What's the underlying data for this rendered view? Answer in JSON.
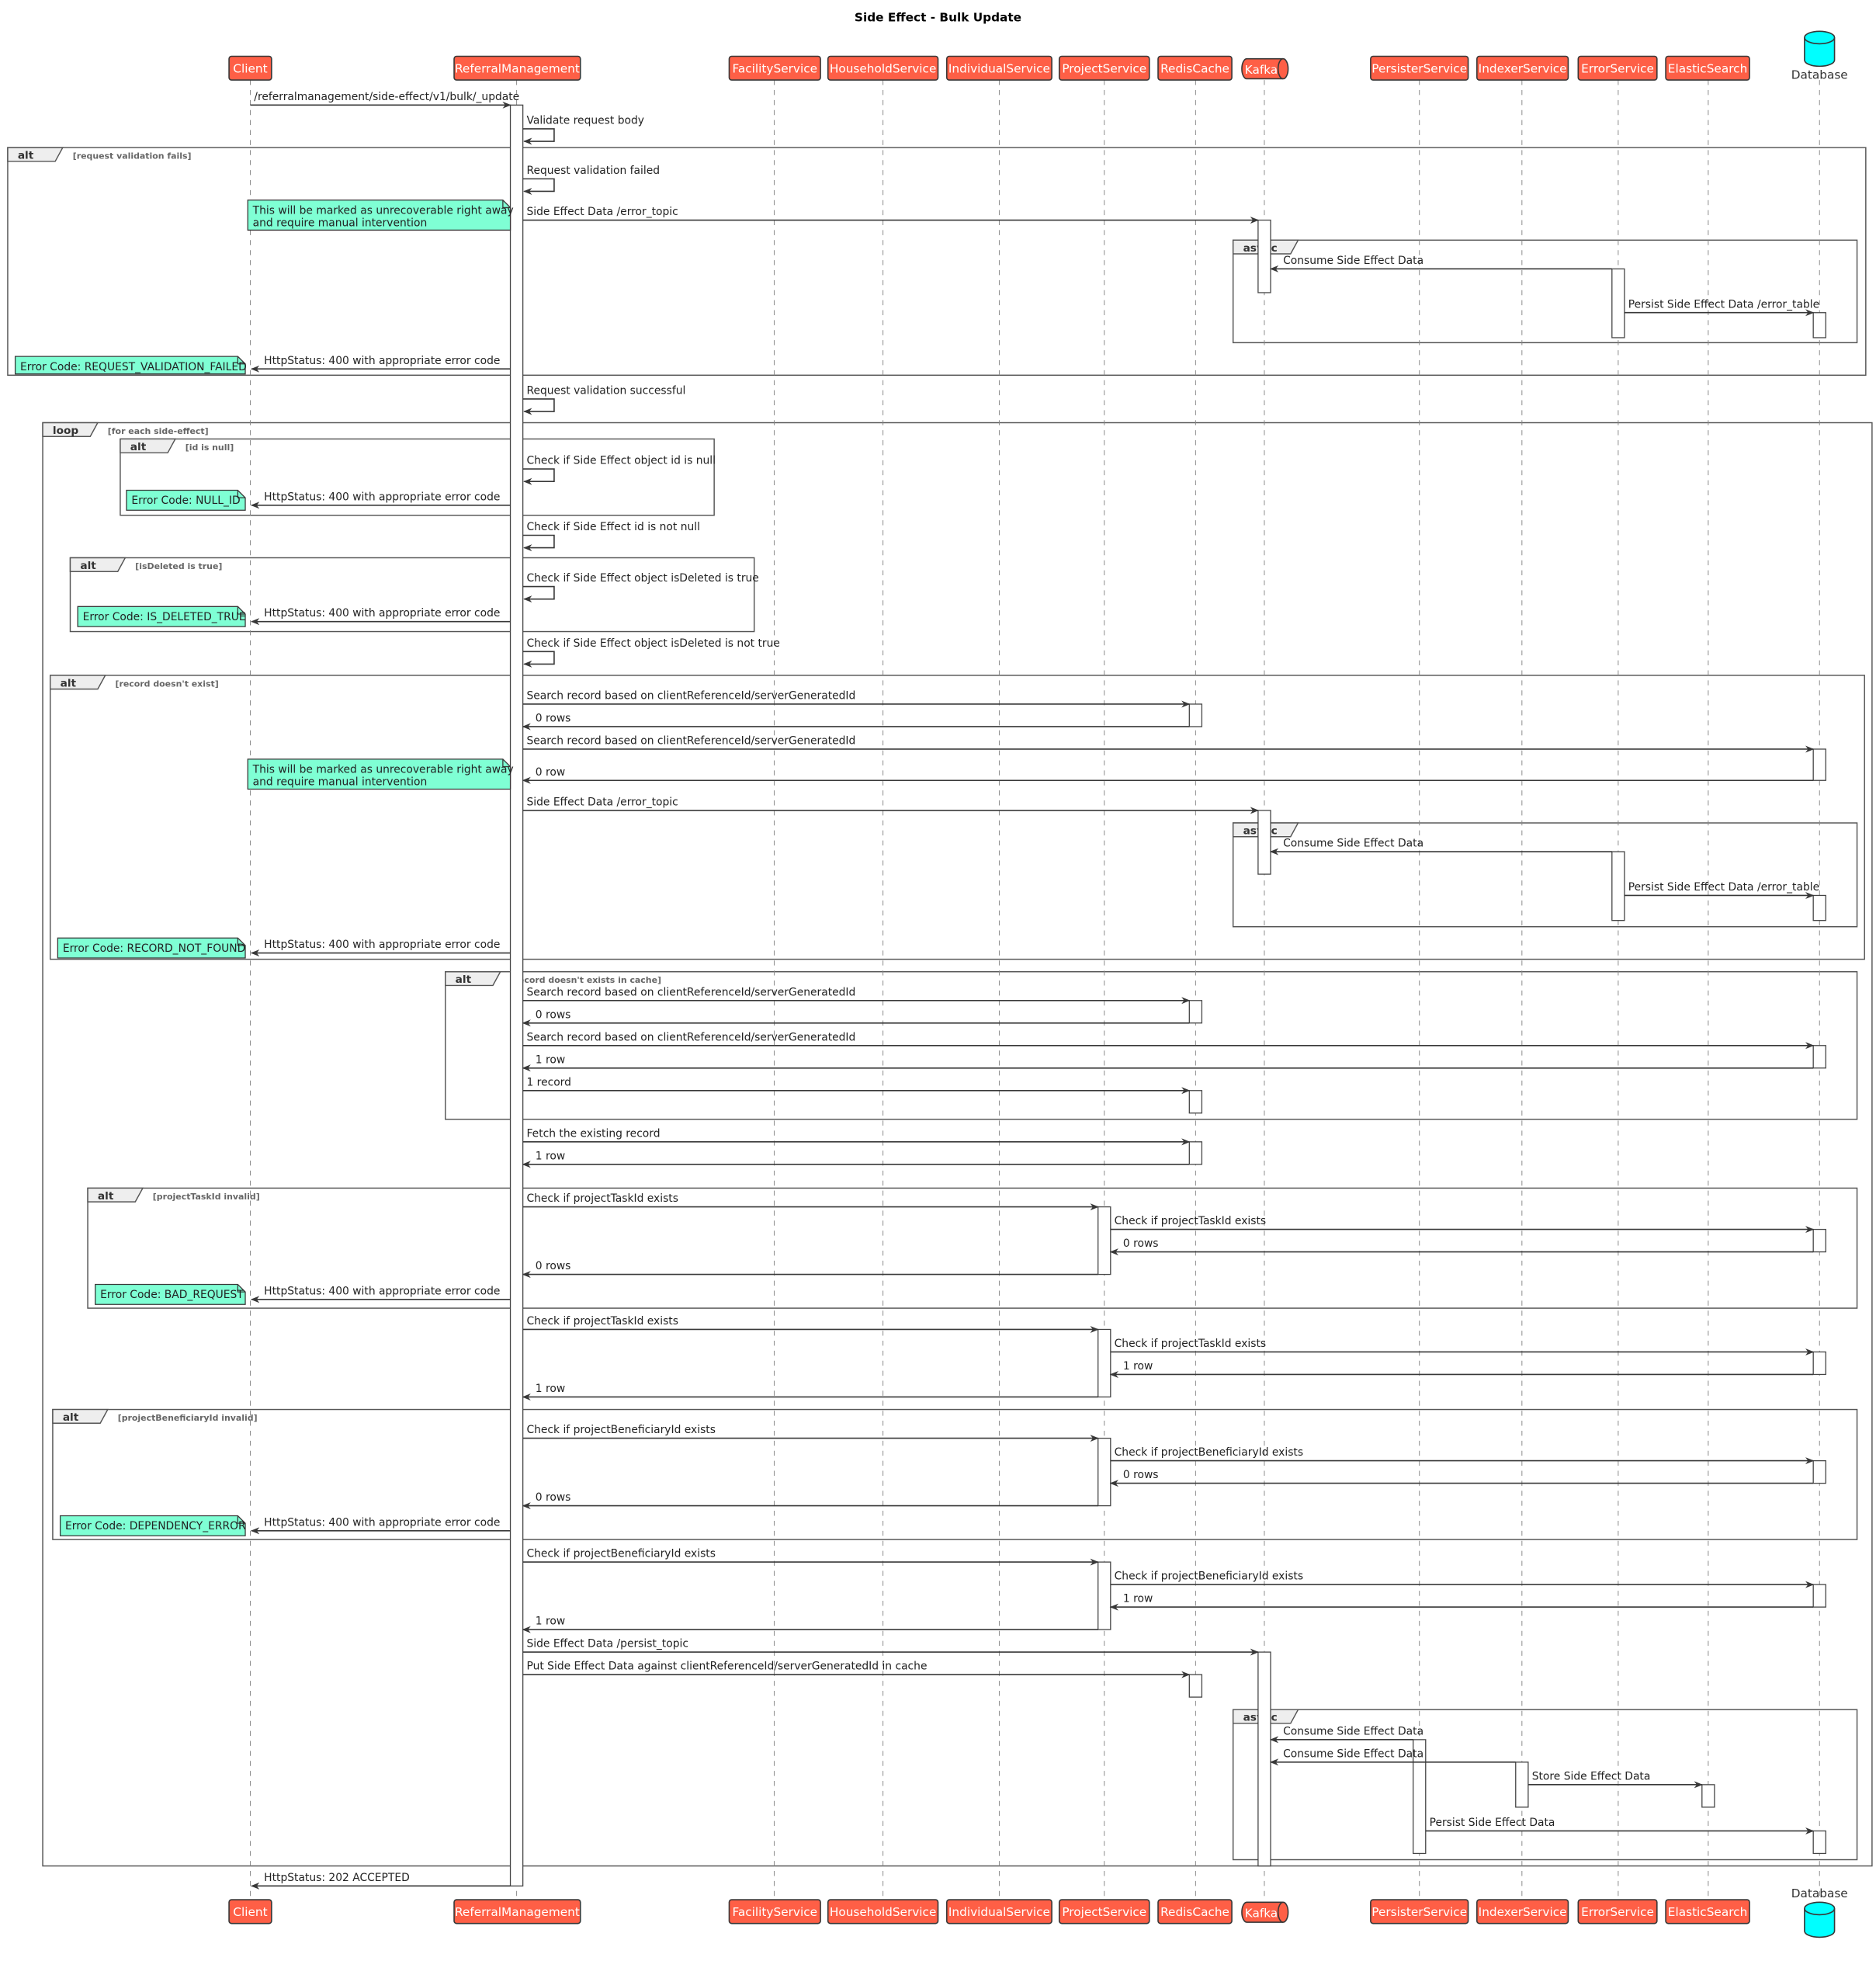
{
  "title": "Side Effect - Bulk Update",
  "colors": {
    "participant": "#FE5F46",
    "database": "#00FFFF",
    "note": "#7FFFD4",
    "line": "#383838"
  },
  "participants": [
    {
      "id": "client",
      "label": "Client",
      "shape": "box"
    },
    {
      "id": "rm",
      "label": "ReferralManagement",
      "shape": "box"
    },
    {
      "id": "facility",
      "label": "FacilityService",
      "shape": "box"
    },
    {
      "id": "household",
      "label": "HouseholdService",
      "shape": "box"
    },
    {
      "id": "individual",
      "label": "IndividualService",
      "shape": "box"
    },
    {
      "id": "project",
      "label": "ProjectService",
      "shape": "box"
    },
    {
      "id": "redis",
      "label": "RedisCache",
      "shape": "box"
    },
    {
      "id": "kafka",
      "label": "Kafka",
      "shape": "queue"
    },
    {
      "id": "persister",
      "label": "PersisterService",
      "shape": "box"
    },
    {
      "id": "indexer",
      "label": "IndexerService",
      "shape": "box"
    },
    {
      "id": "error",
      "label": "ErrorService",
      "shape": "box"
    },
    {
      "id": "elastic",
      "label": "ElasticSearch",
      "shape": "box"
    },
    {
      "id": "db",
      "label": "Database",
      "shape": "database"
    }
  ],
  "messages": [
    {
      "from": "client",
      "to": "rm",
      "text": "/referralmanagement/side-effect/v1/bulk/_update"
    },
    {
      "from": "rm",
      "to": "rm",
      "text": "Validate request body"
    },
    {
      "from": "rm",
      "to": "rm",
      "text": "Request validation failed"
    },
    {
      "from": "rm",
      "to": "kafka",
      "text": "Side Effect Data /error_topic"
    },
    {
      "from": "error",
      "to": "kafka",
      "text": "Consume Side Effect Data"
    },
    {
      "from": "error",
      "to": "db",
      "text": "Persist Side Effect Data /error_table"
    },
    {
      "from": "rm",
      "to": "client",
      "text": "HttpStatus: 400 with appropriate error code"
    },
    {
      "from": "rm",
      "to": "rm",
      "text": "Request validation successful"
    },
    {
      "from": "rm",
      "to": "rm",
      "text": "Check if Side Effect object id is null"
    },
    {
      "from": "rm",
      "to": "client",
      "text": "HttpStatus: 400 with appropriate error code"
    },
    {
      "from": "rm",
      "to": "rm",
      "text": "Check if Side Effect id is not null"
    },
    {
      "from": "rm",
      "to": "rm",
      "text": "Check if Side Effect object isDeleted is true"
    },
    {
      "from": "rm",
      "to": "client",
      "text": "HttpStatus: 400 with appropriate error code"
    },
    {
      "from": "rm",
      "to": "rm",
      "text": "Check if Side Effect object isDeleted is not true"
    },
    {
      "from": "rm",
      "to": "redis",
      "text": "Search record based on clientReferenceId/serverGeneratedId"
    },
    {
      "from": "redis",
      "to": "rm",
      "text": "0 rows"
    },
    {
      "from": "rm",
      "to": "db",
      "text": "Search record based on clientReferenceId/serverGeneratedId"
    },
    {
      "from": "db",
      "to": "rm",
      "text": "0 row"
    },
    {
      "from": "rm",
      "to": "kafka",
      "text": "Side Effect Data /error_topic"
    },
    {
      "from": "error",
      "to": "kafka",
      "text": "Consume Side Effect Data"
    },
    {
      "from": "error",
      "to": "db",
      "text": "Persist Side Effect Data /error_table"
    },
    {
      "from": "rm",
      "to": "client",
      "text": "HttpStatus: 400 with appropriate error code"
    },
    {
      "from": "rm",
      "to": "redis",
      "text": "Search record based on clientReferenceId/serverGeneratedId"
    },
    {
      "from": "redis",
      "to": "rm",
      "text": "0 rows"
    },
    {
      "from": "rm",
      "to": "db",
      "text": "Search record based on clientReferenceId/serverGeneratedId"
    },
    {
      "from": "db",
      "to": "rm",
      "text": "1 row"
    },
    {
      "from": "rm",
      "to": "redis",
      "text": "1 record"
    },
    {
      "from": "rm",
      "to": "redis",
      "text": "Fetch the existing record"
    },
    {
      "from": "redis",
      "to": "rm",
      "text": "1 row"
    },
    {
      "from": "rm",
      "to": "project",
      "text": "Check if projectTaskId exists"
    },
    {
      "from": "project",
      "to": "db",
      "text": "Check if projectTaskId exists"
    },
    {
      "from": "db",
      "to": "project",
      "text": "0 rows"
    },
    {
      "from": "project",
      "to": "rm",
      "text": "0 rows"
    },
    {
      "from": "rm",
      "to": "client",
      "text": "HttpStatus: 400 with appropriate error code"
    },
    {
      "from": "rm",
      "to": "project",
      "text": "Check if projectTaskId exists"
    },
    {
      "from": "project",
      "to": "db",
      "text": "Check if projectTaskId exists"
    },
    {
      "from": "db",
      "to": "project",
      "text": "1 row"
    },
    {
      "from": "project",
      "to": "rm",
      "text": "1 row"
    },
    {
      "from": "rm",
      "to": "project",
      "text": "Check if projectBeneficiaryId exists"
    },
    {
      "from": "project",
      "to": "db",
      "text": "Check if projectBeneficiaryId exists"
    },
    {
      "from": "db",
      "to": "project",
      "text": "0 rows"
    },
    {
      "from": "project",
      "to": "rm",
      "text": "0 rows"
    },
    {
      "from": "rm",
      "to": "client",
      "text": "HttpStatus: 400 with appropriate error code"
    },
    {
      "from": "rm",
      "to": "project",
      "text": "Check if projectBeneficiaryId exists"
    },
    {
      "from": "project",
      "to": "db",
      "text": "Check if projectBeneficiaryId exists"
    },
    {
      "from": "db",
      "to": "project",
      "text": "1 row"
    },
    {
      "from": "project",
      "to": "rm",
      "text": "1 row"
    },
    {
      "from": "rm",
      "to": "kafka",
      "text": "Side Effect Data /persist_topic"
    },
    {
      "from": "rm",
      "to": "redis",
      "text": "Put Side Effect Data against clientReferenceId/serverGeneratedId in cache"
    },
    {
      "from": "persister",
      "to": "kafka",
      "text": "Consume Side Effect Data"
    },
    {
      "from": "indexer",
      "to": "kafka",
      "text": "Consume Side Effect Data"
    },
    {
      "from": "indexer",
      "to": "elastic",
      "text": "Store Side Effect Data"
    },
    {
      "from": "persister",
      "to": "db",
      "text": "Persist Side Effect Data"
    },
    {
      "from": "rm",
      "to": "client",
      "text": "HttpStatus: 202 ACCEPTED"
    }
  ],
  "fragments": [
    {
      "kind": "alt",
      "guard": "[request validation fails]"
    },
    {
      "kind": "async",
      "guard": ""
    },
    {
      "kind": "loop",
      "guard": "[for each side-effect]"
    },
    {
      "kind": "alt",
      "guard": "[id is null]"
    },
    {
      "kind": "alt",
      "guard": "[isDeleted is true]"
    },
    {
      "kind": "alt",
      "guard": "[record doesn't exist]"
    },
    {
      "kind": "async",
      "guard": ""
    },
    {
      "kind": "alt",
      "guard": "[record doesn't exists in cache]"
    },
    {
      "kind": "alt",
      "guard": "[projectTaskId invalid]"
    },
    {
      "kind": "alt",
      "guard": "[projectBeneficiaryId invalid]"
    },
    {
      "kind": "async",
      "guard": ""
    }
  ],
  "notes": [
    {
      "lines": [
        "This will be marked as unrecoverable right away",
        "and require manual intervention"
      ]
    },
    {
      "lines": [
        "Error Code: REQUEST_VALIDATION_FAILED"
      ]
    },
    {
      "lines": [
        "Error Code: NULL_ID"
      ]
    },
    {
      "lines": [
        "Error Code: IS_DELETED_TRUE"
      ]
    },
    {
      "lines": [
        "This will be marked as unrecoverable right away",
        "and require manual intervention"
      ]
    },
    {
      "lines": [
        "Error Code: RECORD_NOT_FOUND"
      ]
    },
    {
      "lines": [
        "Error Code: BAD_REQUEST"
      ]
    },
    {
      "lines": [
        "Error Code: DEPENDENCY_ERROR"
      ]
    }
  ]
}
